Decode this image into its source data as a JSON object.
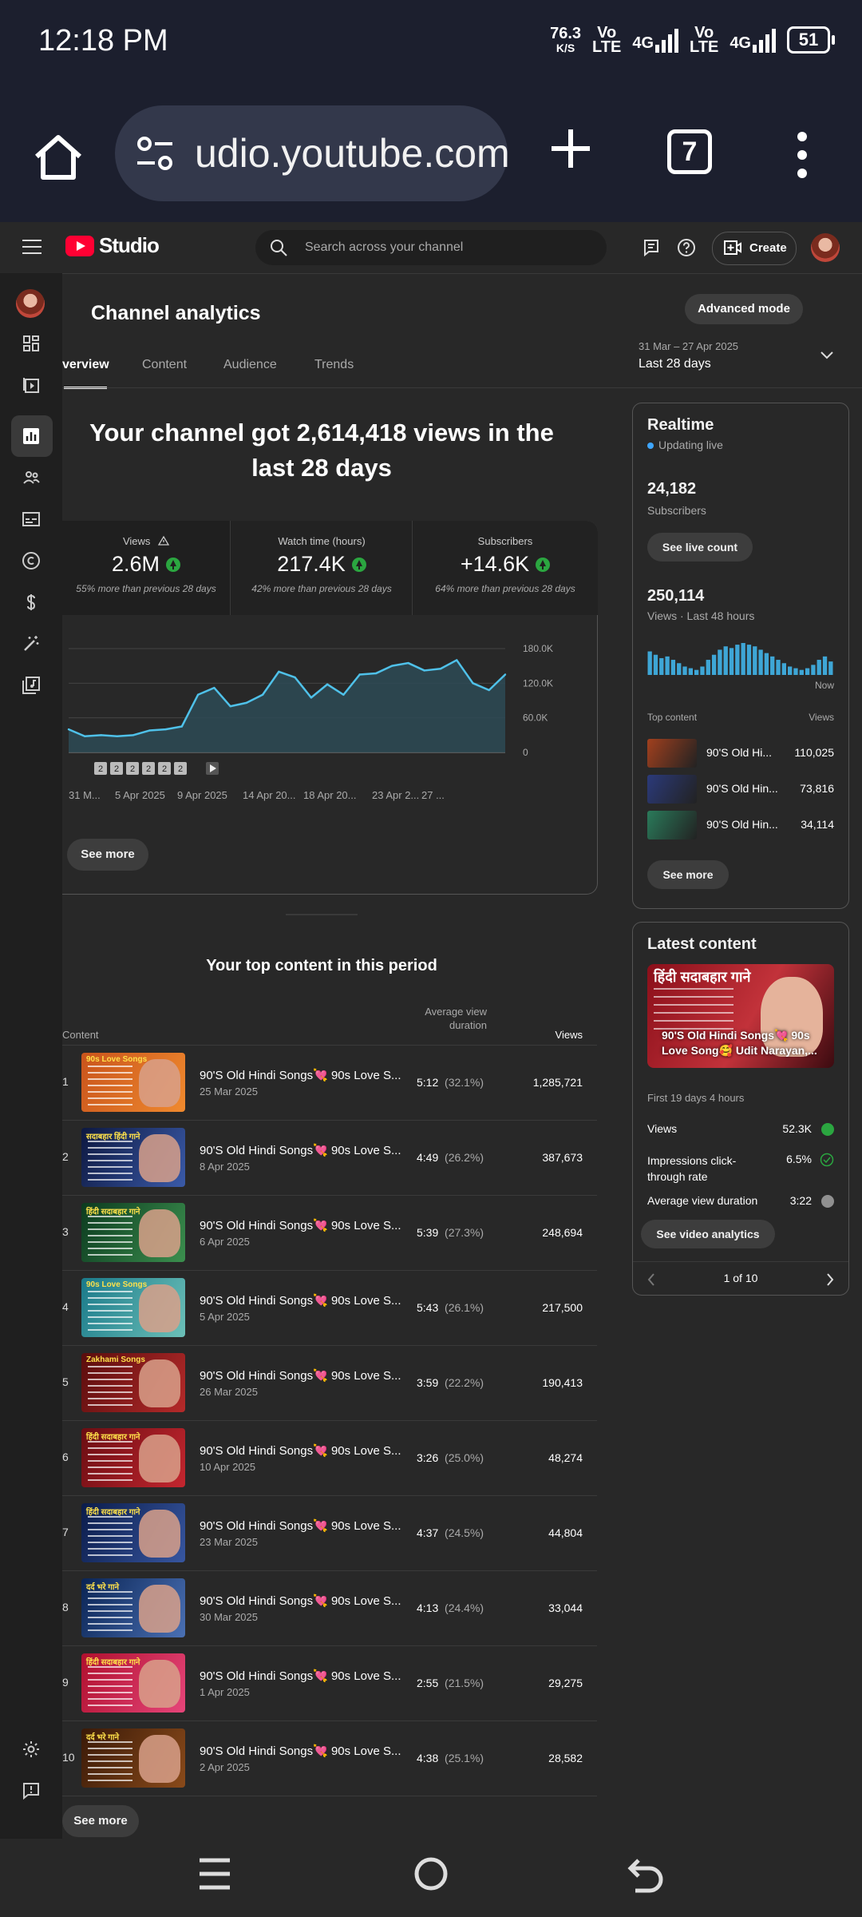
{
  "status_bar": {
    "time": "12:18 PM",
    "speed_value": "76.3",
    "speed_unit": "K/S",
    "sim1": "Vo\nLTE",
    "sim2": "Vo\nLTE",
    "net1": "4G",
    "net2": "4G",
    "battery": "51"
  },
  "browser": {
    "url": "udio.youtube.com",
    "tab_count": "7"
  },
  "header": {
    "logo_text": "Studio",
    "search_placeholder": "Search across your channel",
    "create_label": "Create"
  },
  "analytics": {
    "title": "Channel analytics",
    "advanced_mode_label": "Advanced mode",
    "tabs": [
      "verview",
      "Content",
      "Audience",
      "Trends"
    ],
    "date_range": "31 Mar – 27 Apr 2025",
    "date_label": "Last 28 days",
    "headline": "Your channel got 2,614,418 views in the last 28 days",
    "kpis": [
      {
        "label": "Views",
        "value": "2.6M",
        "comparison": "55% more than previous 28 days"
      },
      {
        "label": "Watch time (hours)",
        "value": "217.4K",
        "comparison": "42% more than previous 28 days"
      },
      {
        "label": "Subscribers",
        "value": "+14.6K",
        "comparison": "64% more than previous 28 days"
      }
    ],
    "see_more_label": "See more"
  },
  "chart_data": {
    "type": "area",
    "series": [
      {
        "values": [
          40000,
          28000,
          30000,
          28000,
          30000,
          38000,
          40000,
          45000,
          100000,
          112000,
          80000,
          86000,
          100000,
          140000,
          130000,
          95000,
          118000,
          100000,
          135000,
          137000,
          150000,
          155000,
          142000,
          145000,
          160000,
          120000,
          108000,
          135000
        ]
      }
    ],
    "x_tick_labels": [
      "31 M...",
      "5 Apr 2025",
      "9 Apr 2025",
      "14 Apr 20...",
      "18 Apr 20...",
      "23 Apr 2...",
      "27 ..."
    ],
    "y_tick_labels": [
      "180.0K",
      "120.0K",
      "60.0K",
      "0"
    ],
    "ylim": [
      0,
      180000
    ],
    "grid": true,
    "marker_labels": [
      "2",
      "2",
      "2",
      "2",
      "2",
      "2"
    ]
  },
  "top_content": {
    "title": "Your top content in this period",
    "col_content": "Content",
    "col_avd": "Average view duration",
    "col_views": "Views",
    "see_more_label": "See more",
    "rows": [
      {
        "rank": "1",
        "title": "90'S Old Hindi Songs💘 90s Love S...",
        "date": "25 Mar 2025",
        "avd": "5:12",
        "pct": "(32.1%)",
        "views": "1,285,721",
        "thumb_caption": "90s Love Songs",
        "c1": "#c9541c",
        "c2": "#f08a2e"
      },
      {
        "rank": "2",
        "title": "90'S Old Hindi Songs💘 90s Love S...",
        "date": "8 Apr 2025",
        "avd": "4:49",
        "pct": "(26.2%)",
        "views": "387,673",
        "thumb_caption": "सदाबहार हिंदी गाने",
        "c1": "#0d1840",
        "c2": "#3a5aa8"
      },
      {
        "rank": "3",
        "title": "90'S Old Hindi Songs💘 90s Love S...",
        "date": "6 Apr 2025",
        "avd": "5:39",
        "pct": "(27.3%)",
        "views": "248,694",
        "thumb_caption": "हिंदी सदाबहार गाने",
        "c1": "#0c3a1f",
        "c2": "#3b8f4e"
      },
      {
        "rank": "4",
        "title": "90'S Old Hindi Songs💘 90s Love S...",
        "date": "5 Apr 2025",
        "avd": "5:43",
        "pct": "(26.1%)",
        "views": "217,500",
        "thumb_caption": "90s Love Songs",
        "c1": "#1a7a8a",
        "c2": "#6cc0b8"
      },
      {
        "rank": "5",
        "title": "90'S Old Hindi Songs💘 90s Love S...",
        "date": "26 Mar 2025",
        "avd": "3:59",
        "pct": "(22.2%)",
        "views": "190,413",
        "thumb_caption": "Zakhami Songs",
        "c1": "#5a0d0d",
        "c2": "#b52a2a"
      },
      {
        "rank": "6",
        "title": "90'S Old Hindi Songs💘 90s Love S...",
        "date": "10 Apr 2025",
        "avd": "3:26",
        "pct": "(25.0%)",
        "views": "48,274",
        "thumb_caption": "हिंदी सदाबहार गाने",
        "c1": "#6a0d12",
        "c2": "#c4262f"
      },
      {
        "rank": "7",
        "title": "90'S Old Hindi Songs💘 90s Love S...",
        "date": "23 Mar 2025",
        "avd": "4:37",
        "pct": "(24.5%)",
        "views": "44,804",
        "thumb_caption": "हिंदी सदाबहार गाने",
        "c1": "#0b1c4a",
        "c2": "#3756a0"
      },
      {
        "rank": "8",
        "title": "90'S Old Hindi Songs💘 90s Love S...",
        "date": "30 Mar 2025",
        "avd": "4:13",
        "pct": "(24.4%)",
        "views": "33,044",
        "thumb_caption": "दर्द भरे गाने",
        "c1": "#0a2454",
        "c2": "#4a70b4"
      },
      {
        "rank": "9",
        "title": "90'S Old Hindi Songs💘 90s Love S...",
        "date": "1 Apr 2025",
        "avd": "2:55",
        "pct": "(21.5%)",
        "views": "29,275",
        "thumb_caption": "हिंदी सदाबहार गाने",
        "c1": "#b0102e",
        "c2": "#e6457a"
      },
      {
        "rank": "10",
        "title": "90'S Old Hindi Songs💘 90s Love S...",
        "date": "2 Apr 2025",
        "avd": "4:38",
        "pct": "(25.1%)",
        "views": "28,582",
        "thumb_caption": "दर्द भरे गाने",
        "c1": "#3a1a08",
        "c2": "#8a4a1a"
      }
    ]
  },
  "realtime": {
    "title": "Realtime",
    "status": "Updating live",
    "subscribers_value": "24,182",
    "subscribers_label": "Subscribers",
    "live_count_label": "See live count",
    "views_value": "250,114",
    "views_label": "Views · Last 48 hours",
    "now_label": "Now",
    "spark": [
      14,
      12,
      10,
      11,
      9,
      7,
      5,
      4,
      3,
      5,
      9,
      12,
      15,
      17,
      16,
      18,
      19,
      18,
      17,
      15,
      13,
      11,
      9,
      7,
      5,
      4,
      3,
      4,
      6,
      9,
      11,
      8
    ],
    "top_content_label": "Top content",
    "views_col_label": "Views",
    "items": [
      {
        "title": "90'S Old Hi...",
        "views": "110,025",
        "color": "#a1401e"
      },
      {
        "title": "90'S Old Hin...",
        "views": "73,816",
        "color": "#2b3a7a"
      },
      {
        "title": "90'S Old Hin...",
        "views": "34,114",
        "color": "#2a7a5a"
      }
    ],
    "see_more_label": "See more"
  },
  "latest": {
    "title": "Latest content",
    "thumb_heading": "हिंदी सदाबहार गाने",
    "video_title": "90'S Old Hindi Songs💘 90s Love Song🥰 Udit Narayan,...",
    "first_label": "First 19 days 4 hours",
    "stats": [
      {
        "label": "Views",
        "value": "52.3K",
        "status_color": "#2ba640"
      },
      {
        "label": "Impressions click-through rate",
        "value": "6.5%",
        "status_color": "#2ba640"
      },
      {
        "label": "Average view duration",
        "value": "3:22",
        "status_color": "#909090"
      }
    ],
    "button_label": "See video analytics",
    "pager": "1 of 10"
  }
}
